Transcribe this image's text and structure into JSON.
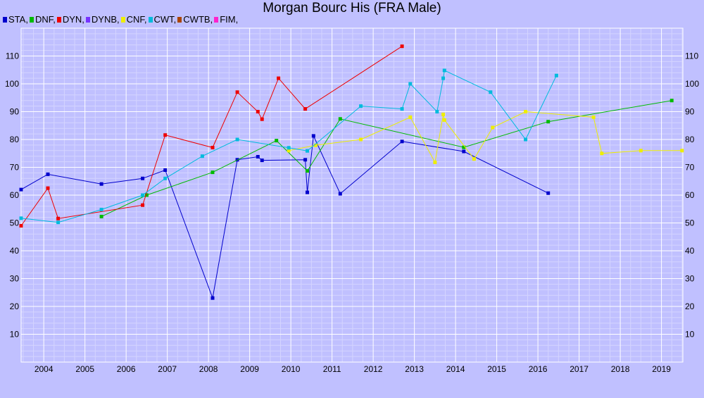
{
  "chart_data": {
    "type": "line",
    "title": "Morgan Bourc His (FRA Male)",
    "x_ticks": [
      "2004",
      "2005",
      "2006",
      "2007",
      "2008",
      "2009",
      "2010",
      "2011",
      "2012",
      "2013",
      "2014",
      "2015",
      "2016",
      "2017",
      "2018",
      "2019"
    ],
    "y_ticks": [
      "10",
      "20",
      "30",
      "40",
      "50",
      "60",
      "70",
      "80",
      "90",
      "100",
      "110"
    ],
    "xlim": [
      2003.45,
      2019.52
    ],
    "ylim": [
      0,
      120
    ],
    "grid": true,
    "legend_placement": "top-left",
    "series": [
      {
        "name": "STA",
        "color": "#0000cc",
        "points": [
          [
            2003.45,
            62
          ],
          [
            2004.1,
            67.5
          ],
          [
            2005.4,
            64
          ],
          [
            2006.4,
            66
          ],
          [
            2006.95,
            69
          ],
          [
            2008.1,
            23
          ],
          [
            2008.7,
            72.7
          ],
          [
            2009.2,
            73.8
          ],
          [
            2009.3,
            72.5
          ],
          [
            2010.35,
            72.7
          ],
          [
            2010.4,
            61
          ],
          [
            2010.55,
            81.3
          ],
          [
            2011.2,
            60.5
          ],
          [
            2012.7,
            79.3
          ],
          [
            2014.2,
            75.7
          ],
          [
            2016.25,
            60.7
          ]
        ]
      },
      {
        "name": "DNF",
        "color": "#00bb00",
        "points": [
          [
            2005.4,
            52.3
          ],
          [
            2006.5,
            60
          ],
          [
            2008.1,
            68.2
          ],
          [
            2009.65,
            79.6
          ],
          [
            2010.4,
            68.7
          ],
          [
            2011.2,
            87.4
          ],
          [
            2014.2,
            77.2
          ],
          [
            2016.25,
            86.4
          ],
          [
            2019.25,
            94
          ]
        ]
      },
      {
        "name": "DYN",
        "color": "#ee0000",
        "points": [
          [
            2003.45,
            49
          ],
          [
            2004.1,
            62.5
          ],
          [
            2004.35,
            51.6
          ],
          [
            2006.4,
            56.4
          ],
          [
            2006.95,
            81.6
          ],
          [
            2008.1,
            77.1
          ],
          [
            2008.7,
            97
          ],
          [
            2009.2,
            90
          ],
          [
            2009.3,
            87.3
          ],
          [
            2009.7,
            102
          ],
          [
            2010.35,
            91
          ],
          [
            2012.7,
            113.5
          ]
        ]
      },
      {
        "name": "DYNB",
        "color": "#7733ff",
        "points": []
      },
      {
        "name": "CNF",
        "color": "#eeee00",
        "points": [
          [
            2009.95,
            76
          ],
          [
            2010.6,
            77.9
          ],
          [
            2011.7,
            80
          ],
          [
            2012.9,
            88
          ],
          [
            2013.5,
            71.8
          ],
          [
            2013.7,
            89
          ],
          [
            2013.73,
            87
          ],
          [
            2014.45,
            73
          ],
          [
            2014.9,
            84.3
          ],
          [
            2015.7,
            90
          ],
          [
            2017.35,
            88
          ],
          [
            2017.55,
            75
          ],
          [
            2018.5,
            76
          ],
          [
            2019.5,
            76
          ]
        ]
      },
      {
        "name": "CWT",
        "color": "#00bbdd",
        "points": [
          [
            2003.45,
            51.7
          ],
          [
            2004.35,
            50.2
          ],
          [
            2005.4,
            54.8
          ],
          [
            2006.4,
            60
          ],
          [
            2006.95,
            66
          ],
          [
            2007.85,
            74
          ],
          [
            2008.7,
            80
          ],
          [
            2009.95,
            77
          ],
          [
            2010.4,
            75.9
          ],
          [
            2011.7,
            92
          ],
          [
            2012.7,
            91
          ],
          [
            2012.9,
            100
          ],
          [
            2013.55,
            90
          ],
          [
            2013.7,
            102
          ],
          [
            2013.73,
            104.8
          ],
          [
            2014.85,
            97
          ],
          [
            2015.7,
            80
          ],
          [
            2016.45,
            103
          ]
        ]
      },
      {
        "name": "CWTB",
        "color": "#aa4400",
        "points": []
      },
      {
        "name": "FIM",
        "color": "#ff22cc",
        "points": []
      }
    ]
  }
}
